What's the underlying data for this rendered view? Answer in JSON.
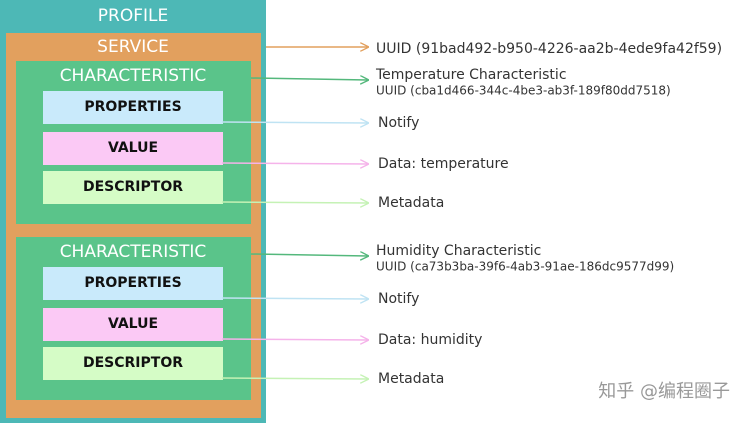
{
  "profile": {
    "title": "PROFILE"
  },
  "service": {
    "title": "SERVICE",
    "uuid": "UUID (91bad492-b950-4226-aa2b-4ede9fa42f59)"
  },
  "characteristics": [
    {
      "title": "CHARACTERISTIC",
      "name": "Temperature Characteristic",
      "uuid": "UUID (cba1d466-344c-4be3-ab3f-189f80dd7518)",
      "properties": {
        "label": "PROPERTIES",
        "text": "Notify"
      },
      "value": {
        "label": "VALUE",
        "text": "Data: temperature"
      },
      "descriptor": {
        "label": "DESCRIPTOR",
        "text": "Metadata"
      }
    },
    {
      "title": "CHARACTERISTIC",
      "name": "Humidity Characteristic",
      "uuid": "UUID (ca73b3ba-39f6-4ab3-91ae-186dc9577d99)",
      "properties": {
        "label": "PROPERTIES",
        "text": "Notify"
      },
      "value": {
        "label": "VALUE",
        "text": "Data: humidity"
      },
      "descriptor": {
        "label": "DESCRIPTOR",
        "text": "Metadata"
      }
    }
  ],
  "watermark": "知乎 @编程圈子"
}
